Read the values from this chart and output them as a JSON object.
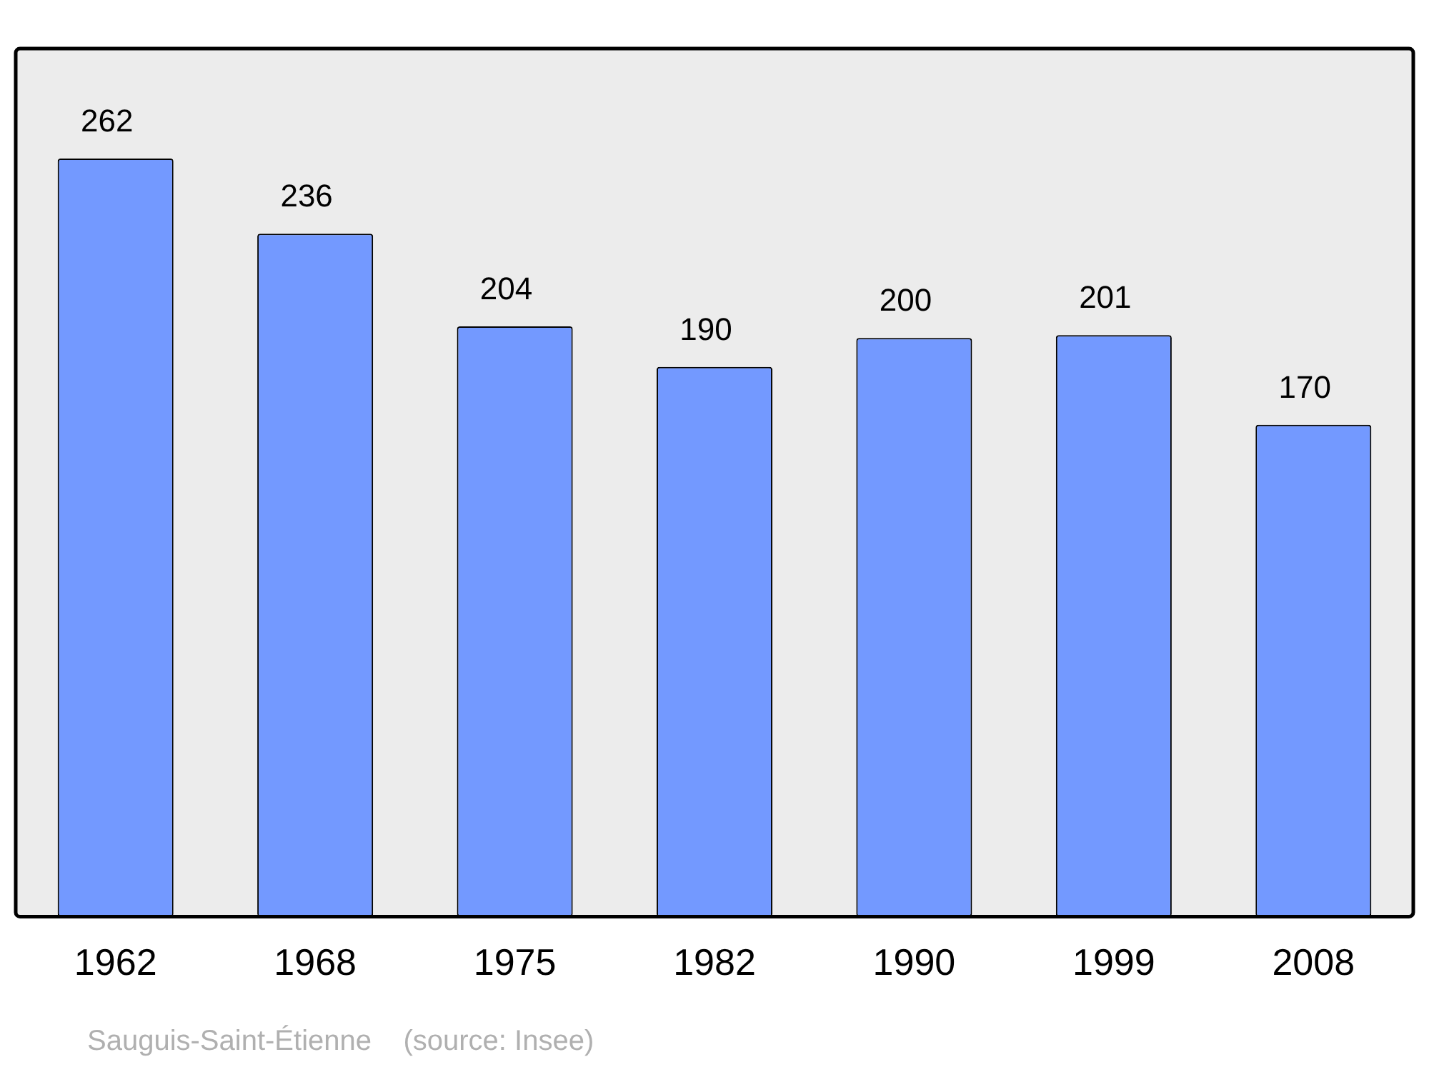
{
  "chart_data": {
    "type": "bar",
    "categories": [
      "1962",
      "1968",
      "1975",
      "1982",
      "1990",
      "1999",
      "2008"
    ],
    "values": [
      262,
      236,
      204,
      190,
      200,
      201,
      170
    ],
    "color": "#7399ff",
    "data_labels": true,
    "grid": false,
    "legend": false,
    "tick_labels": "x",
    "annotations": [
      "Sauguis-Saint-Étienne    (source: Insee)"
    ]
  }
}
